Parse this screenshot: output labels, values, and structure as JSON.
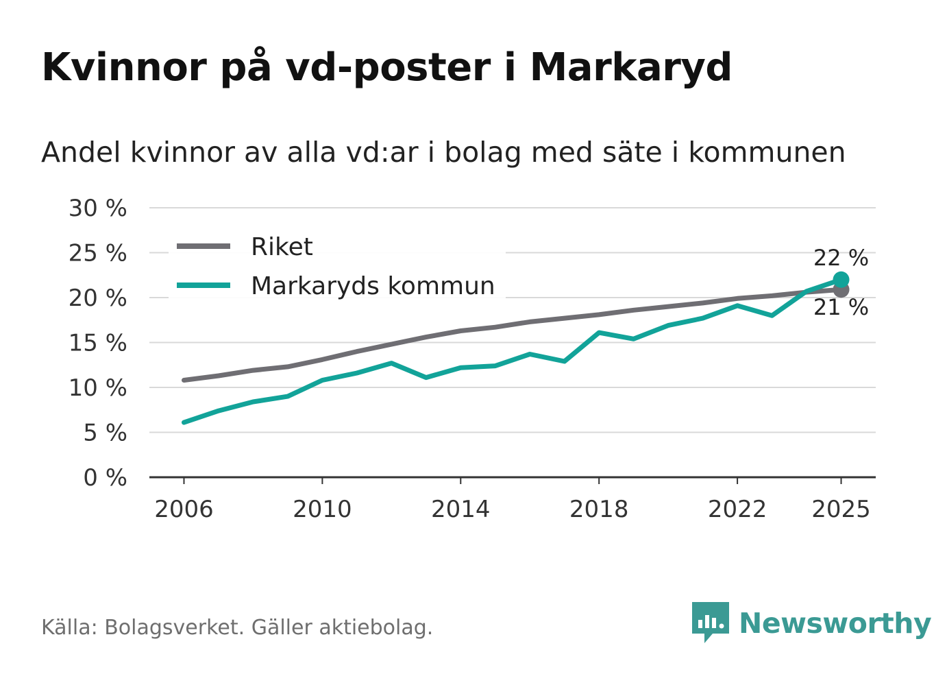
{
  "title": "Kvinnor på vd-poster i Markaryd",
  "subtitle": "Andel kvinnor av alla vd:ar i bolag med säte i kommunen",
  "source": "Källa: Bolagsverket. Gäller aktiebolag.",
  "brand": {
    "name": "Newsworthy",
    "icon": "newsworthy-logo-icon",
    "color": "#3b9a94"
  },
  "chart_data": {
    "type": "line",
    "title": "Kvinnor på vd-poster i Markaryd",
    "xlabel": "",
    "ylabel": "",
    "x": [
      2006,
      2007,
      2008,
      2009,
      2010,
      2011,
      2012,
      2013,
      2014,
      2015,
      2016,
      2017,
      2018,
      2019,
      2020,
      2021,
      2022,
      2023,
      2024,
      2025
    ],
    "xticks": [
      "2006",
      "2010",
      "2014",
      "2018",
      "2022",
      "2025"
    ],
    "xlim": [
      2005,
      2026
    ],
    "ylim": [
      0,
      30
    ],
    "yticks": [
      0,
      5,
      10,
      15,
      20,
      25,
      30
    ],
    "ytick_labels": [
      "0 %",
      "5 %",
      "10 %",
      "15 %",
      "20 %",
      "25 %",
      "30 %"
    ],
    "grid": true,
    "legend_position": "top-left",
    "series": [
      {
        "name": "Riket",
        "color": "#6f6e73",
        "values": [
          10.8,
          11.3,
          11.9,
          12.3,
          13.1,
          14.0,
          14.8,
          15.6,
          16.3,
          16.7,
          17.3,
          17.7,
          18.1,
          18.6,
          19.0,
          19.4,
          19.9,
          20.2,
          20.6,
          20.9
        ],
        "end_label": "21 %"
      },
      {
        "name": "Markaryds kommun",
        "color": "#12a399",
        "values": [
          6.1,
          7.4,
          8.4,
          9.0,
          10.8,
          11.6,
          12.7,
          11.1,
          12.2,
          12.4,
          13.7,
          12.9,
          16.1,
          15.4,
          16.9,
          17.7,
          19.1,
          18.0,
          20.7,
          22.0
        ],
        "end_label": "22 %"
      }
    ]
  }
}
